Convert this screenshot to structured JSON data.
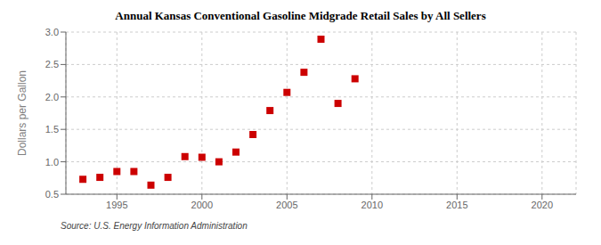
{
  "chart_data": {
    "type": "scatter",
    "title": "Annual Kansas Conventional Gasoline Midgrade Retail Sales by All Sellers",
    "ylabel": "Dollars per Gallon",
    "annotations": [
      "Source: U.S. Energy Information Administration"
    ],
    "x": [
      1993,
      1994,
      1995,
      1996,
      1997,
      1998,
      1999,
      2000,
      2001,
      2002,
      2003,
      2004,
      2005,
      2006,
      2007,
      2008,
      2009
    ],
    "values": [
      0.73,
      0.76,
      0.85,
      0.85,
      0.64,
      0.76,
      1.08,
      1.07,
      1.0,
      1.15,
      1.42,
      1.79,
      2.07,
      2.38,
      2.89,
      1.9,
      2.28
    ],
    "color": "#cc0000",
    "marker": "square",
    "xlim": [
      1992,
      2022
    ],
    "xticks": [
      1995,
      2000,
      2005,
      2010,
      2015,
      2020
    ],
    "ylim": [
      0.5,
      3.0
    ],
    "yticks": [
      0.5,
      {
        "value": 1,
        "label": "1.0"
      },
      1.5,
      {
        "value": 2,
        "label": "2.0"
      },
      2.5,
      {
        "value": 3,
        "label": "3.0"
      }
    ],
    "grid": true
  }
}
